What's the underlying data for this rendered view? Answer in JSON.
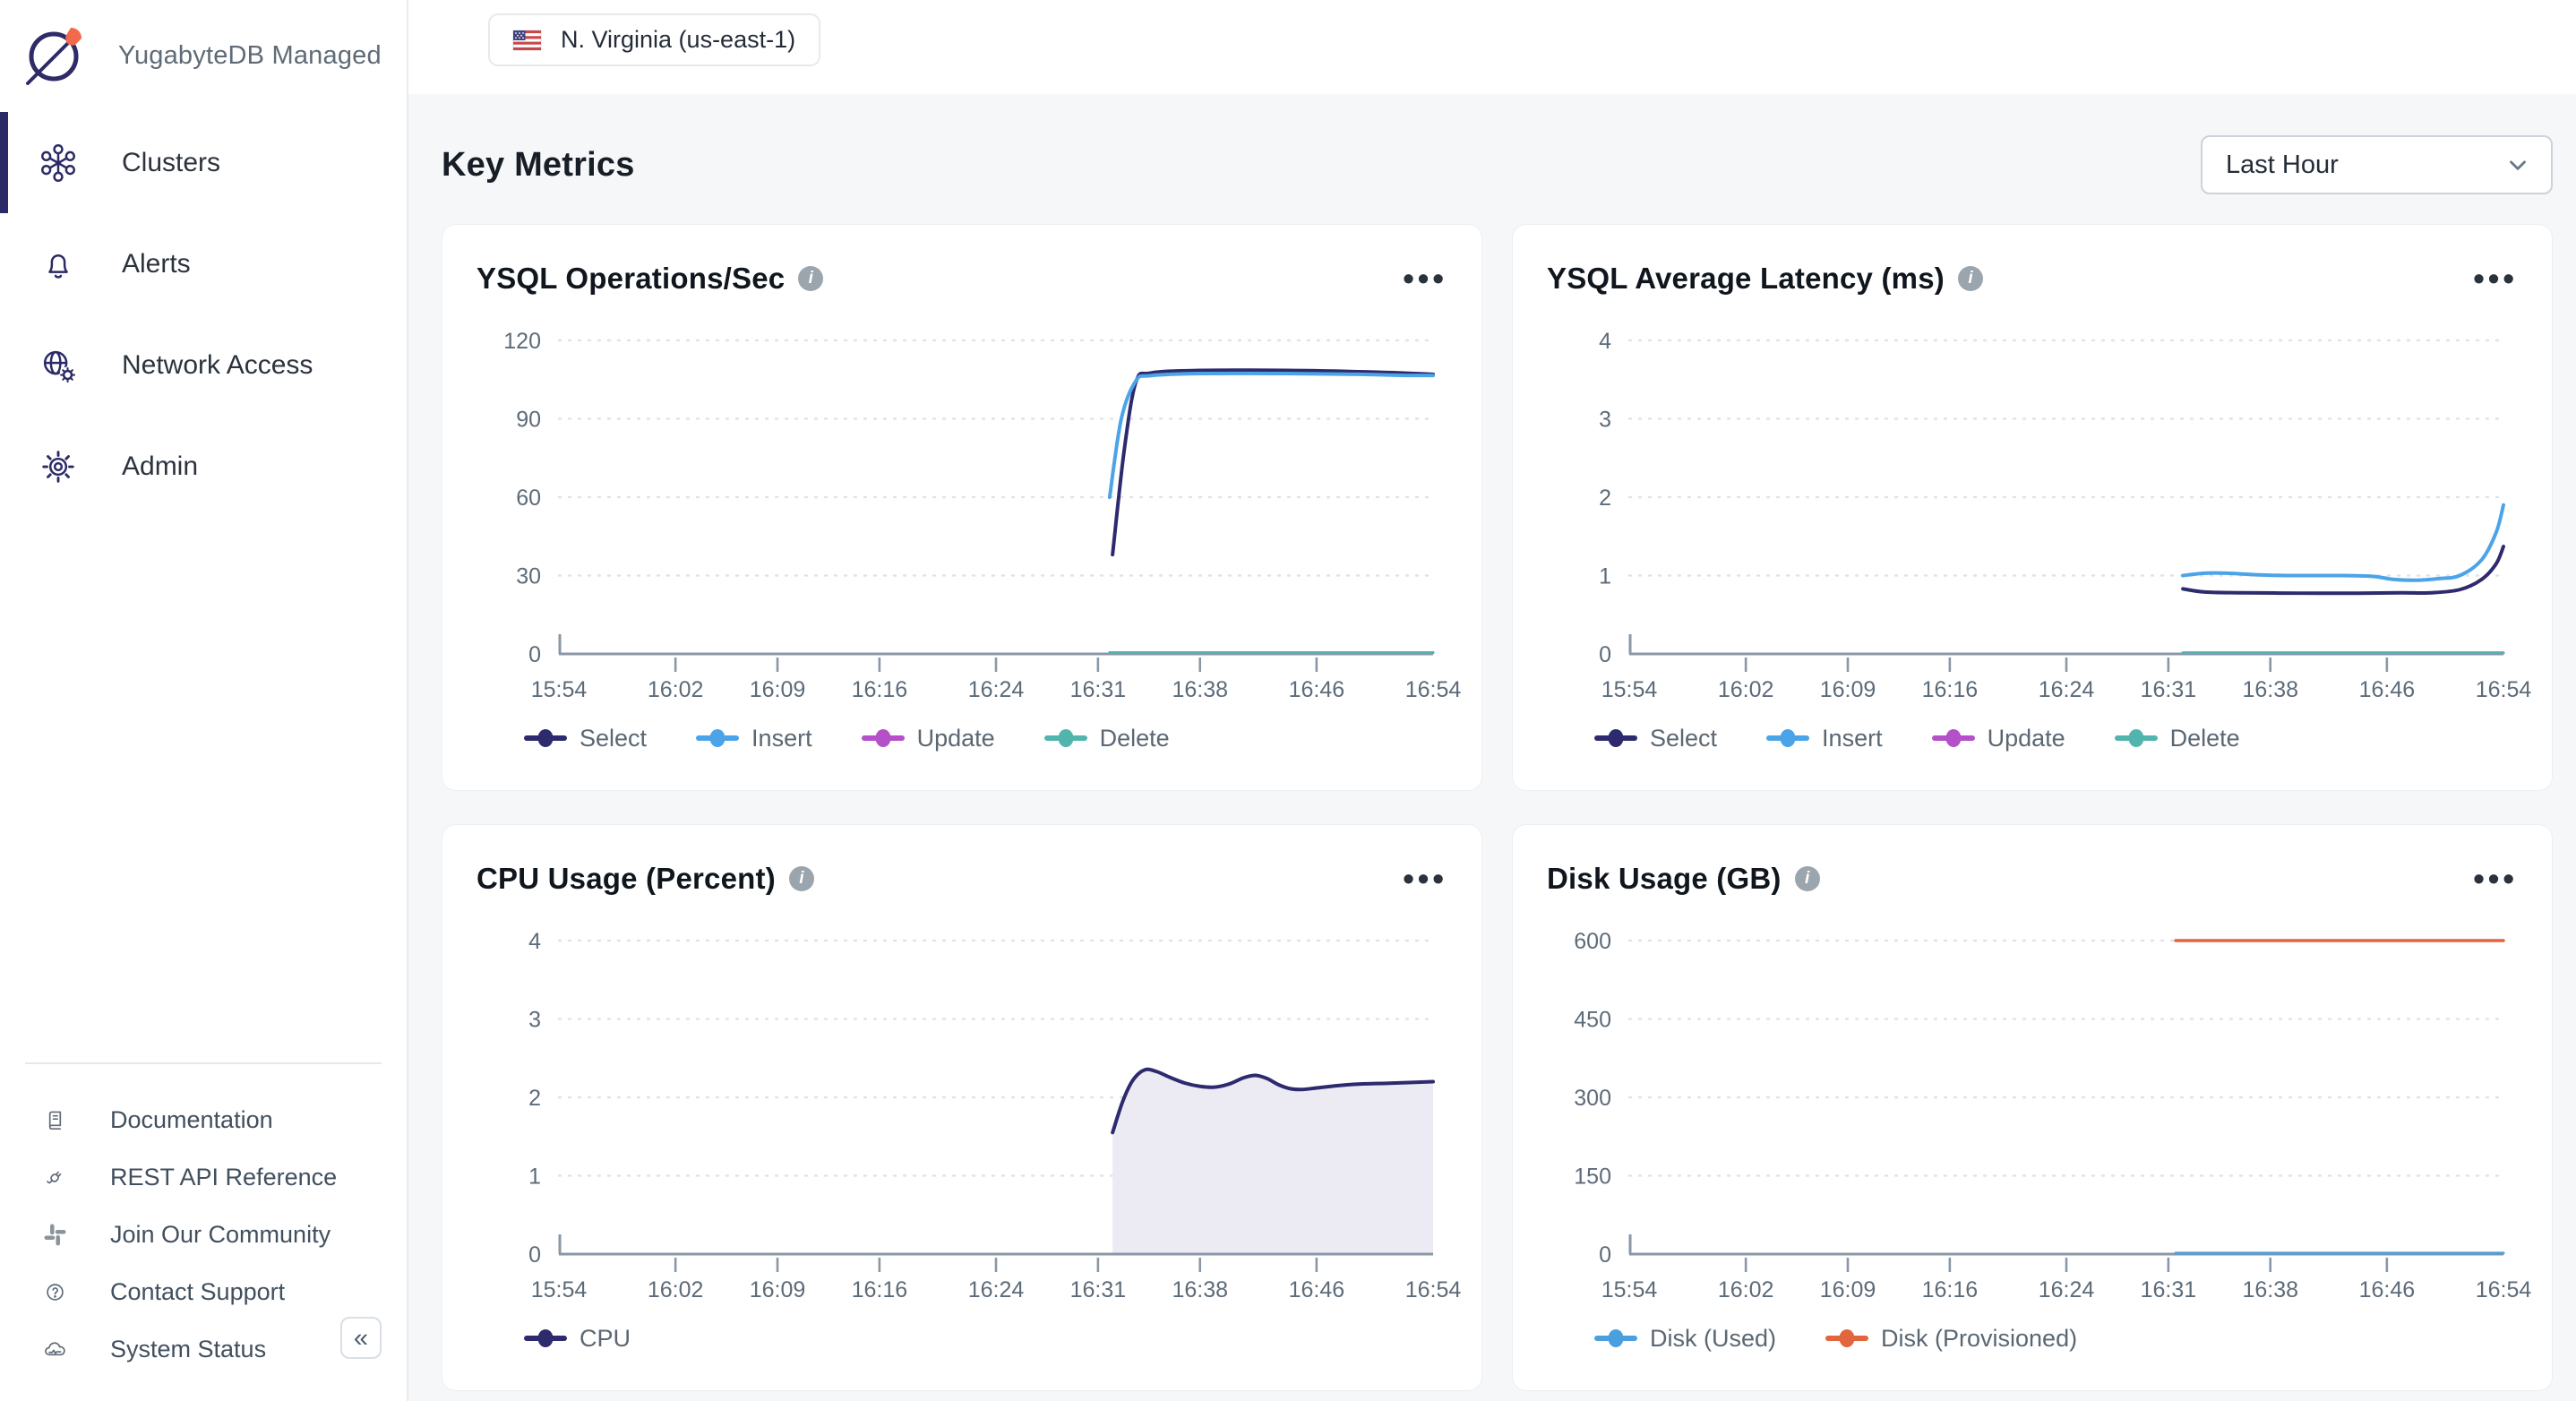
{
  "brand": {
    "name": "YugabyteDB Managed"
  },
  "sidebar": {
    "items": [
      {
        "label": "Clusters",
        "active": true
      },
      {
        "label": "Alerts",
        "active": false
      },
      {
        "label": "Network Access",
        "active": false
      },
      {
        "label": "Admin",
        "active": false
      }
    ],
    "footer_items": [
      {
        "label": "Documentation"
      },
      {
        "label": "REST API Reference"
      },
      {
        "label": "Join Our Community"
      },
      {
        "label": "Contact Support"
      },
      {
        "label": "System Status"
      }
    ]
  },
  "topbar": {
    "region_label": "N. Virginia (us-east-1)"
  },
  "page": {
    "heading": "Key Metrics",
    "time_range_value": "Last Hour"
  },
  "icons": {
    "more": "•••",
    "collapse": "«",
    "info": "i"
  },
  "colors": {
    "accent_navy": "#2b2a66",
    "select_line": "#2d2a6e",
    "insert_line": "#4ba4e8",
    "update_line": "#b450c8",
    "delete_line": "#52b5ad",
    "disk_used": "#4a9fdf",
    "disk_provisioned": "#e2653d",
    "cpu_fill": "#ecebf4",
    "rocket_orange": "#f3694c"
  },
  "chart_data": [
    {
      "type": "line",
      "title": "YSQL Operations/Sec",
      "ylim": [
        0,
        120
      ],
      "yticks": [
        0,
        30,
        60,
        90,
        120
      ],
      "x_range_minutes": [
        0,
        60
      ],
      "x_tick_minutes": [
        0,
        8,
        15,
        22,
        30,
        37,
        44,
        52,
        60
      ],
      "x_tick_labels": [
        "15:54",
        "16:02",
        "16:09",
        "16:16",
        "16:24",
        "16:31",
        "16:38",
        "16:46",
        "16:54"
      ],
      "legend_position": "bottom",
      "grid": "dotted-horizontal",
      "series": [
        {
          "name": "Select",
          "color": "#2d2a6e",
          "width": 4,
          "points": [
            [
              38,
              38
            ],
            [
              38.8,
              78
            ],
            [
              39.6,
              104
            ],
            [
              40.6,
              107.5
            ],
            [
              44,
              108.5
            ],
            [
              50,
              108.5
            ],
            [
              55,
              108
            ],
            [
              58,
              107.5
            ],
            [
              60,
              107
            ]
          ]
        },
        {
          "name": "Insert",
          "color": "#4ba4e8",
          "width": 4,
          "points": [
            [
              37.8,
              60
            ],
            [
              38.6,
              90
            ],
            [
              39.6,
              104.5
            ],
            [
              40.6,
              106.5
            ],
            [
              44,
              107.3
            ],
            [
              50,
              107.3
            ],
            [
              55,
              107
            ],
            [
              58,
              106.6
            ],
            [
              60,
              106.6
            ]
          ]
        },
        {
          "name": "Update",
          "color": "#b450c8",
          "width": 3,
          "points": [
            [
              37.8,
              0.5
            ],
            [
              60,
              0.5
            ]
          ]
        },
        {
          "name": "Delete",
          "color": "#52b5ad",
          "width": 3,
          "points": [
            [
              37.8,
              0.5
            ],
            [
              60,
              0.5
            ]
          ]
        }
      ]
    },
    {
      "type": "line",
      "title": "YSQL Average Latency (ms)",
      "ylim": [
        0,
        4
      ],
      "yticks": [
        0,
        1,
        2,
        3,
        4
      ],
      "x_range_minutes": [
        0,
        60
      ],
      "x_tick_minutes": [
        0,
        8,
        15,
        22,
        30,
        37,
        44,
        52,
        60
      ],
      "x_tick_labels": [
        "15:54",
        "16:02",
        "16:09",
        "16:16",
        "16:24",
        "16:31",
        "16:38",
        "16:46",
        "16:54"
      ],
      "legend_position": "bottom",
      "grid": "dotted-horizontal",
      "series": [
        {
          "name": "Select",
          "color": "#2d2a6e",
          "width": 4,
          "points": [
            [
              38,
              0.83
            ],
            [
              39.5,
              0.79
            ],
            [
              42,
              0.78
            ],
            [
              46,
              0.775
            ],
            [
              50,
              0.775
            ],
            [
              53,
              0.78
            ],
            [
              55,
              0.78
            ],
            [
              57,
              0.82
            ],
            [
              58.5,
              0.95
            ],
            [
              59.5,
              1.15
            ],
            [
              60,
              1.37
            ]
          ]
        },
        {
          "name": "Insert",
          "color": "#4ba4e8",
          "width": 4,
          "points": [
            [
              38,
              1.0
            ],
            [
              39.5,
              1.03
            ],
            [
              41,
              1.03
            ],
            [
              43,
              1.01
            ],
            [
              45,
              1.0
            ],
            [
              47,
              1.0
            ],
            [
              49,
              1.0
            ],
            [
              51,
              0.99
            ],
            [
              52.5,
              0.95
            ],
            [
              54,
              0.94
            ],
            [
              55.5,
              0.96
            ],
            [
              57,
              1.0
            ],
            [
              58.5,
              1.2
            ],
            [
              59.5,
              1.55
            ],
            [
              60,
              1.9
            ]
          ]
        },
        {
          "name": "Update",
          "color": "#b450c8",
          "width": 3,
          "points": [
            [
              38,
              0.015
            ],
            [
              60,
              0.015
            ]
          ]
        },
        {
          "name": "Delete",
          "color": "#52b5ad",
          "width": 3,
          "points": [
            [
              38,
              0.015
            ],
            [
              60,
              0.015
            ]
          ]
        }
      ]
    },
    {
      "type": "area",
      "title": "CPU Usage (Percent)",
      "ylim": [
        0,
        4
      ],
      "yticks": [
        0,
        1,
        2,
        3,
        4
      ],
      "x_range_minutes": [
        0,
        60
      ],
      "x_tick_minutes": [
        0,
        8,
        15,
        22,
        30,
        37,
        44,
        52,
        60
      ],
      "x_tick_labels": [
        "15:54",
        "16:02",
        "16:09",
        "16:16",
        "16:24",
        "16:31",
        "16:38",
        "16:46",
        "16:54"
      ],
      "legend_position": "bottom",
      "grid": "dotted-horizontal",
      "series": [
        {
          "name": "CPU",
          "color": "#2d2a6e",
          "width": 4,
          "fill": "#ecebf4",
          "points": [
            [
              38,
              1.55
            ],
            [
              38.7,
              1.95
            ],
            [
              39.4,
              2.22
            ],
            [
              40.2,
              2.35
            ],
            [
              41,
              2.33
            ],
            [
              42,
              2.25
            ],
            [
              43,
              2.18
            ],
            [
              44,
              2.14
            ],
            [
              45,
              2.13
            ],
            [
              46,
              2.17
            ],
            [
              47,
              2.25
            ],
            [
              47.8,
              2.28
            ],
            [
              48.6,
              2.24
            ],
            [
              49.4,
              2.16
            ],
            [
              50.2,
              2.11
            ],
            [
              51,
              2.1
            ],
            [
              52,
              2.12
            ],
            [
              53.5,
              2.15
            ],
            [
              55,
              2.17
            ],
            [
              57,
              2.18
            ],
            [
              60,
              2.2
            ]
          ]
        }
      ]
    },
    {
      "type": "line",
      "title": "Disk Usage (GB)",
      "ylim": [
        0,
        600
      ],
      "yticks": [
        0,
        150,
        300,
        450,
        600
      ],
      "x_range_minutes": [
        0,
        60
      ],
      "x_tick_minutes": [
        0,
        8,
        15,
        22,
        30,
        37,
        44,
        52,
        60
      ],
      "x_tick_labels": [
        "15:54",
        "16:02",
        "16:09",
        "16:16",
        "16:24",
        "16:31",
        "16:38",
        "16:46",
        "16:54"
      ],
      "legend_position": "bottom",
      "grid": "dotted-horizontal",
      "series": [
        {
          "name": "Disk (Used)",
          "color": "#4a9fdf",
          "width": 3,
          "points": [
            [
              37.5,
              2
            ],
            [
              60,
              2
            ]
          ]
        },
        {
          "name": "Disk (Provisioned)",
          "color": "#e2653d",
          "width": 3.5,
          "points": [
            [
              37.5,
              600
            ],
            [
              60,
              600
            ]
          ]
        }
      ]
    }
  ]
}
